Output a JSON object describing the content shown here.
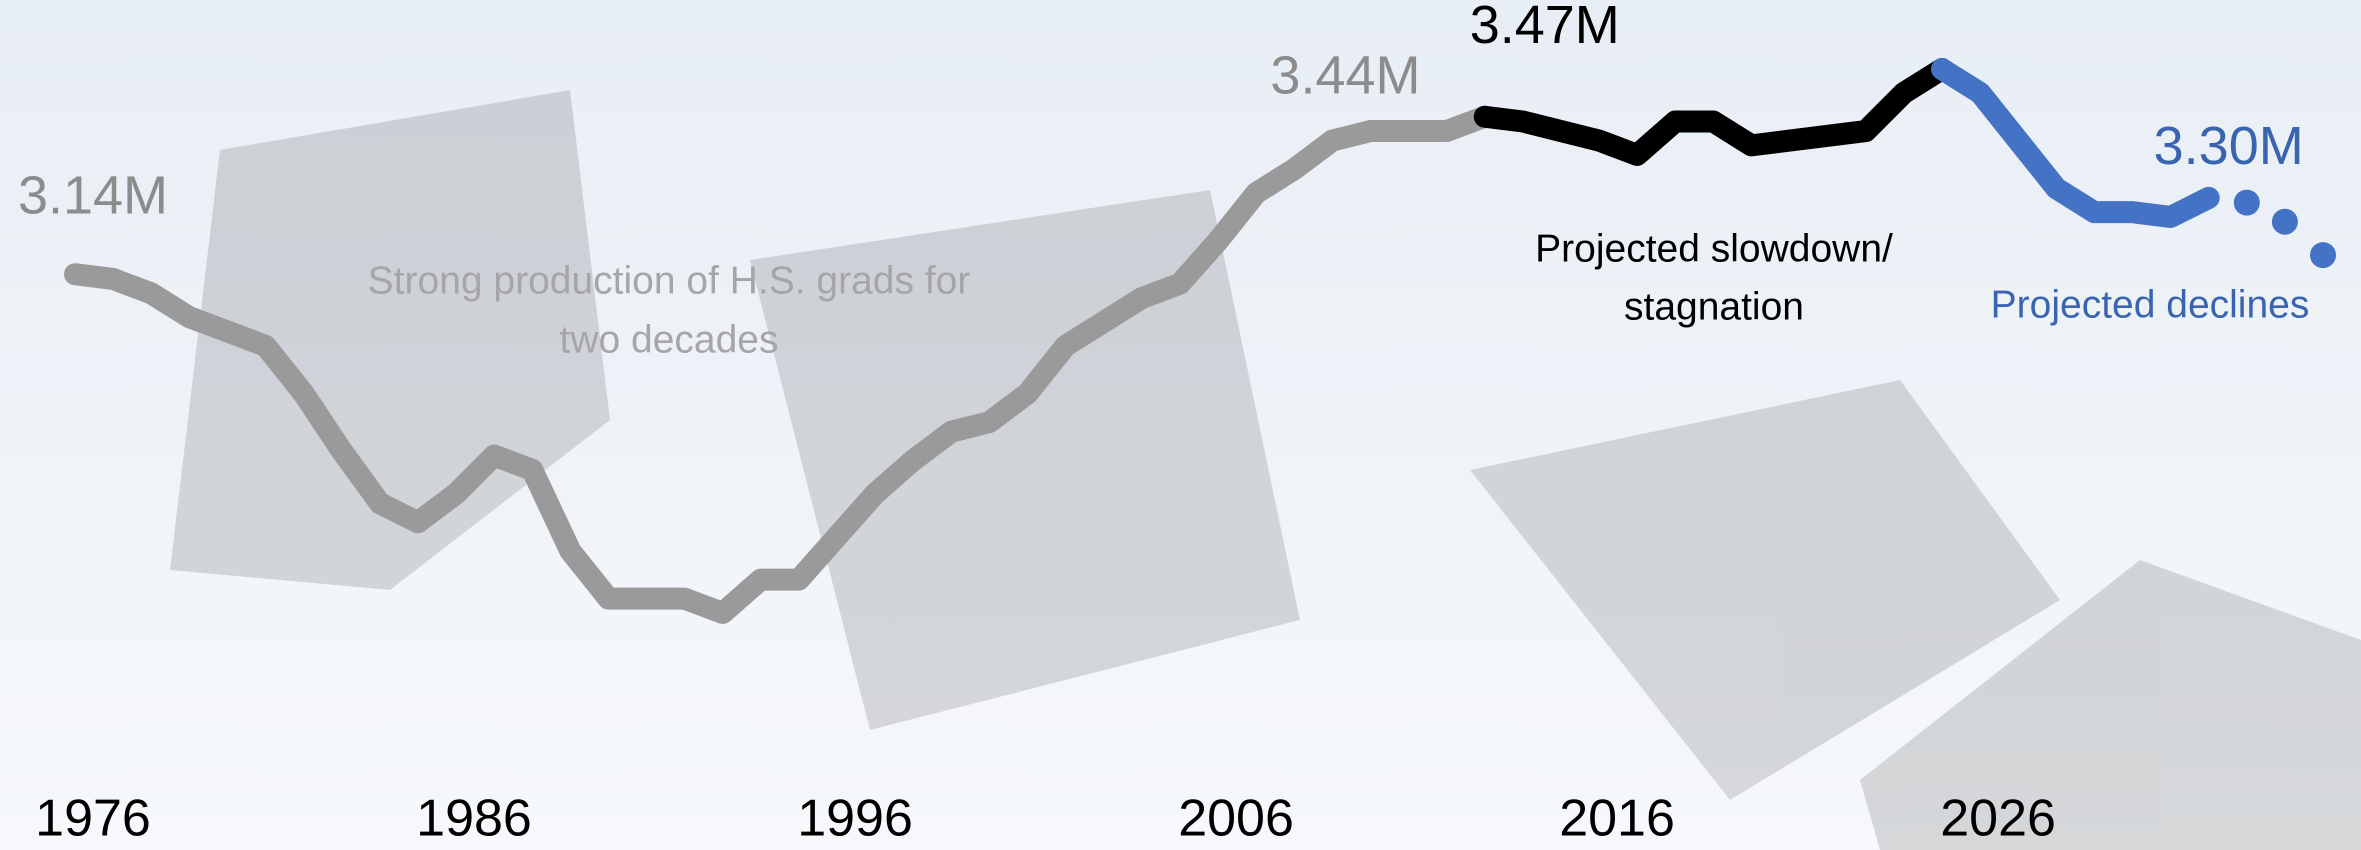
{
  "chart_data": {
    "type": "line",
    "x": [
      1976,
      1977,
      1978,
      1979,
      1980,
      1981,
      1982,
      1983,
      1984,
      1985,
      1986,
      1987,
      1988,
      1989,
      1990,
      1991,
      1992,
      1993,
      1994,
      1995,
      1996,
      1997,
      1998,
      1999,
      2000,
      2001,
      2002,
      2003,
      2004,
      2005,
      2006,
      2007,
      2008,
      2009,
      2010,
      2011,
      2012,
      2013,
      2014,
      2015,
      2016,
      2017,
      2018,
      2019,
      2020,
      2021,
      2022,
      2023,
      2024,
      2025,
      2026,
      2027,
      2028,
      2029,
      2030,
      2031,
      2032,
      2033,
      2034,
      2035
    ],
    "xlim": [
      1976,
      2035
    ],
    "xticks": [
      1976,
      1986,
      1996,
      2006,
      2016,
      2026
    ],
    "ylim": [
      2.3,
      3.7
    ],
    "series": [
      {
        "color": "#9a9a9a",
        "style": "line",
        "values": [
          3.14,
          3.13,
          3.1,
          3.05,
          3.02,
          2.99,
          2.89,
          2.77,
          2.66,
          2.62,
          2.68,
          2.76,
          2.73,
          2.56,
          2.46,
          2.46,
          2.46,
          2.43,
          2.5,
          2.5,
          2.59,
          2.68,
          2.75,
          2.81,
          2.83,
          2.89,
          2.99,
          3.04,
          3.09,
          3.12,
          3.21,
          3.31,
          3.36,
          3.42,
          3.44,
          3.44,
          3.44,
          3.47,
          null,
          null,
          null,
          null,
          null,
          null,
          null,
          null,
          null,
          null,
          null,
          null,
          null,
          null,
          null,
          null,
          null,
          null,
          null,
          null,
          null,
          null
        ],
        "value_labels": [
          "3.14M",
          null,
          null,
          null,
          null,
          null,
          null,
          null,
          null,
          null,
          null,
          null,
          null,
          null,
          null,
          null,
          null,
          null,
          null,
          null,
          null,
          null,
          null,
          null,
          null,
          null,
          null,
          null,
          null,
          null,
          null,
          null,
          null,
          null,
          "3.44M",
          null,
          null,
          null,
          null,
          null,
          null,
          null,
          null,
          null,
          null,
          null,
          null,
          null,
          null,
          null,
          null,
          null,
          null,
          null,
          null,
          null,
          null,
          null,
          null,
          null
        ]
      },
      {
        "color": "#000000",
        "style": "line",
        "values": [
          null,
          null,
          null,
          null,
          null,
          null,
          null,
          null,
          null,
          null,
          null,
          null,
          null,
          null,
          null,
          null,
          null,
          null,
          null,
          null,
          null,
          null,
          null,
          null,
          null,
          null,
          null,
          null,
          null,
          null,
          null,
          null,
          null,
          null,
          null,
          null,
          null,
          3.47,
          3.46,
          3.44,
          3.42,
          3.39,
          3.46,
          3.46,
          3.41,
          3.42,
          3.43,
          3.44,
          3.52,
          3.57,
          null,
          null,
          null,
          null,
          null,
          null,
          null,
          null,
          null,
          null
        ],
        "value_labels": [
          null,
          null,
          null,
          null,
          null,
          null,
          null,
          null,
          null,
          null,
          null,
          null,
          null,
          null,
          null,
          null,
          null,
          null,
          null,
          null,
          null,
          null,
          null,
          null,
          null,
          null,
          null,
          null,
          null,
          null,
          null,
          null,
          null,
          null,
          null,
          null,
          null,
          "3.47M",
          null,
          null,
          null,
          null,
          null,
          null,
          null,
          null,
          null,
          null,
          null,
          null,
          null,
          null,
          null,
          null,
          null,
          null,
          null,
          null,
          null,
          null
        ]
      },
      {
        "color": "#4472c4",
        "style": "line",
        "values": [
          null,
          null,
          null,
          null,
          null,
          null,
          null,
          null,
          null,
          null,
          null,
          null,
          null,
          null,
          null,
          null,
          null,
          null,
          null,
          null,
          null,
          null,
          null,
          null,
          null,
          null,
          null,
          null,
          null,
          null,
          null,
          null,
          null,
          null,
          null,
          null,
          null,
          null,
          null,
          null,
          null,
          null,
          null,
          null,
          null,
          null,
          null,
          null,
          null,
          3.57,
          3.52,
          3.42,
          3.32,
          3.27,
          3.27,
          3.26,
          3.3,
          null,
          null,
          null
        ],
        "value_labels": [
          null,
          null,
          null,
          null,
          null,
          null,
          null,
          null,
          null,
          null,
          null,
          null,
          null,
          null,
          null,
          null,
          null,
          null,
          null,
          null,
          null,
          null,
          null,
          null,
          null,
          null,
          null,
          null,
          null,
          null,
          null,
          null,
          null,
          null,
          null,
          null,
          null,
          null,
          null,
          null,
          null,
          null,
          null,
          null,
          null,
          null,
          null,
          null,
          null,
          null,
          null,
          null,
          null,
          null,
          null,
          null,
          "3.30M",
          null,
          null,
          null
        ]
      },
      {
        "color": "#4472c4",
        "style": "dots",
        "values": [
          null,
          null,
          null,
          null,
          null,
          null,
          null,
          null,
          null,
          null,
          null,
          null,
          null,
          null,
          null,
          null,
          null,
          null,
          null,
          null,
          null,
          null,
          null,
          null,
          null,
          null,
          null,
          null,
          null,
          null,
          null,
          null,
          null,
          null,
          null,
          null,
          null,
          null,
          null,
          null,
          null,
          null,
          null,
          null,
          null,
          null,
          null,
          null,
          null,
          null,
          null,
          null,
          null,
          null,
          null,
          null,
          null,
          3.29,
          3.25,
          3.18
        ]
      }
    ],
    "annotations": [
      {
        "lines": [
          "Strong production of H.S. grads for",
          "two decades"
        ],
        "color": "#a6a6a6"
      },
      {
        "lines": [
          "Projected slowdown/",
          "stagnation"
        ],
        "color": "#000000"
      },
      {
        "lines": [
          "Projected declines"
        ],
        "color": "#3b64b0"
      }
    ]
  }
}
